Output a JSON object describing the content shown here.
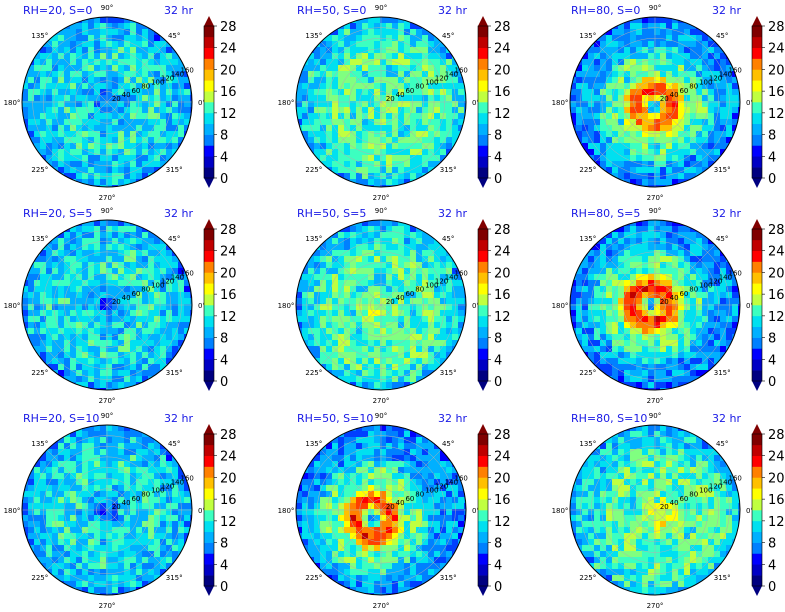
{
  "chart_data": [
    {
      "type": "heatmap",
      "title": "RH=20, S=0",
      "time_label": "32 hr",
      "pattern": "dry",
      "center": [
        0.0,
        0.0
      ],
      "intensity": 0.25
    },
    {
      "type": "heatmap",
      "title": "RH=50, S=0",
      "time_label": "32 hr",
      "pattern": "mid",
      "center": [
        0.08,
        -0.05
      ],
      "intensity": 0.4
    },
    {
      "type": "heatmap",
      "title": "RH=80, S=0",
      "time_label": "32 hr",
      "pattern": "ring",
      "center": [
        0.0,
        -0.05
      ],
      "intensity": 0.9
    },
    {
      "type": "heatmap",
      "title": "RH=20, S=5",
      "time_label": "32 hr",
      "pattern": "dry",
      "center": [
        0.0,
        0.0
      ],
      "intensity": 0.25
    },
    {
      "type": "heatmap",
      "title": "RH=50, S=5",
      "time_label": "32 hr",
      "pattern": "mid",
      "center": [
        0.0,
        -0.1
      ],
      "intensity": 0.55
    },
    {
      "type": "heatmap",
      "title": "RH=80, S=5",
      "time_label": "32 hr",
      "pattern": "ring",
      "center": [
        -0.05,
        0.0
      ],
      "intensity": 0.95
    },
    {
      "type": "heatmap",
      "title": "RH=20, S=10",
      "time_label": "32 hr",
      "pattern": "dry",
      "center": [
        0.0,
        0.0
      ],
      "intensity": 0.25
    },
    {
      "type": "heatmap",
      "title": "RH=50, S=10",
      "time_label": "32 hr",
      "pattern": "ring",
      "center": [
        -0.1,
        -0.1
      ],
      "intensity": 0.95
    },
    {
      "type": "heatmap",
      "title": "RH=80, S=10",
      "time_label": "32 hr",
      "pattern": "mid",
      "center": [
        0.1,
        -0.1
      ],
      "intensity": 0.7
    }
  ],
  "angle_labels": [
    "90°",
    "45°",
    "0°",
    "315°",
    "270°",
    "225°",
    "180°",
    "135°"
  ],
  "radial_labels": [
    "20",
    "40",
    "60",
    "80",
    "100",
    "120",
    "140",
    "160"
  ],
  "colorbar_ticks": [
    "0",
    "4",
    "8",
    "12",
    "16",
    "20",
    "24",
    "28"
  ],
  "colorbar_colors": [
    "#000080",
    "#0000c4",
    "#0000ff",
    "#0040ff",
    "#0080ff",
    "#00b0ff",
    "#00e0f0",
    "#3cffc0",
    "#80ff80",
    "#c0ff40",
    "#ffff00",
    "#ffc000",
    "#ff8000",
    "#ff4000",
    "#ff0000",
    "#c00000",
    "#800000"
  ],
  "layout_cols": 3
}
